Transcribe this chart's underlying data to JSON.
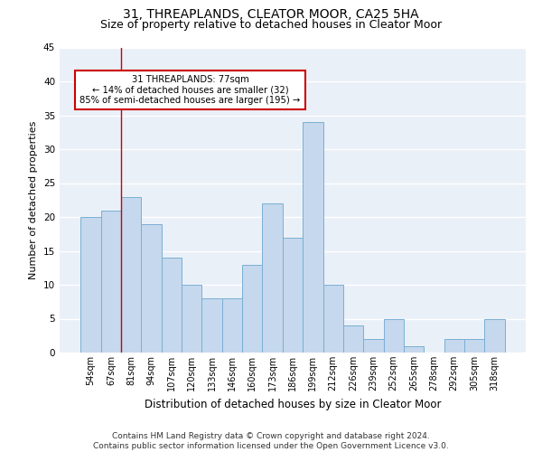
{
  "title": "31, THREAPLANDS, CLEATOR MOOR, CA25 5HA",
  "subtitle": "Size of property relative to detached houses in Cleator Moor",
  "xlabel": "Distribution of detached houses by size in Cleator Moor",
  "ylabel": "Number of detached properties",
  "footnote": "Contains HM Land Registry data © Crown copyright and database right 2024.\nContains public sector information licensed under the Open Government Licence v3.0.",
  "categories": [
    "54sqm",
    "67sqm",
    "81sqm",
    "94sqm",
    "107sqm",
    "120sqm",
    "133sqm",
    "146sqm",
    "160sqm",
    "173sqm",
    "186sqm",
    "199sqm",
    "212sqm",
    "226sqm",
    "239sqm",
    "252sqm",
    "265sqm",
    "278sqm",
    "292sqm",
    "305sqm",
    "318sqm"
  ],
  "values": [
    20,
    21,
    23,
    19,
    14,
    10,
    8,
    8,
    13,
    22,
    17,
    34,
    10,
    4,
    2,
    5,
    1,
    0,
    2,
    2,
    5
  ],
  "bar_color": "#c5d8ed",
  "bar_edge_color": "#7aafd4",
  "background_color": "#eaf0f8",
  "grid_color": "#ffffff",
  "red_line_index": 2,
  "property_label": "31 THREAPLANDS: 77sqm",
  "annotation_line1": "← 14% of detached houses are smaller (32)",
  "annotation_line2": "85% of semi-detached houses are larger (195) →",
  "annotation_box_color": "#ffffff",
  "annotation_box_edge": "#cc0000",
  "red_line_color": "#cc0000",
  "ylim": [
    0,
    45
  ],
  "title_fontsize": 10,
  "subtitle_fontsize": 9,
  "xlabel_fontsize": 8.5,
  "ylabel_fontsize": 8,
  "tick_fontsize": 7,
  "footnote_fontsize": 6.5
}
